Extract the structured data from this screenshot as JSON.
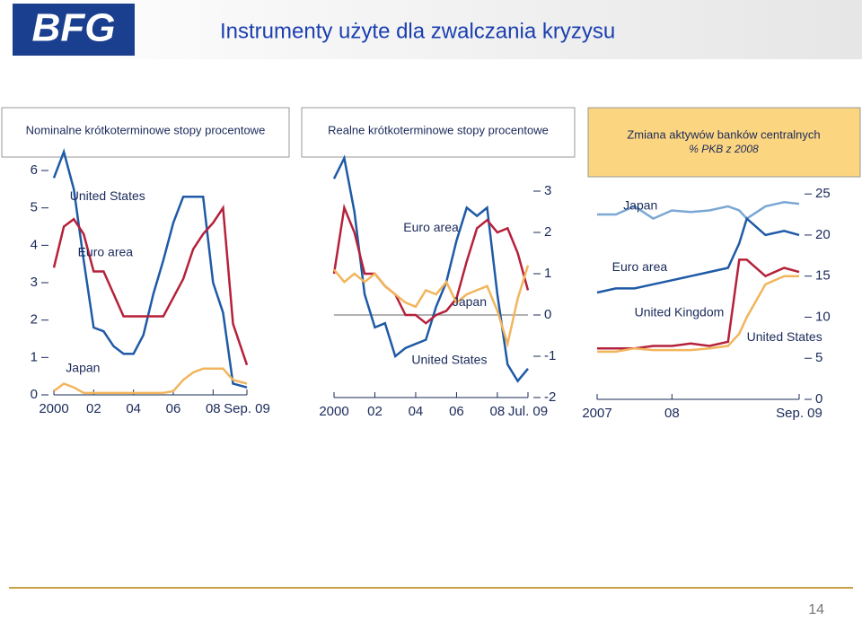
{
  "logo": "BFG",
  "title": "Instrumenty użyte dla zwalczania kryzysu",
  "page_number": "14",
  "chart_data": [
    {
      "type": "line",
      "title": "Nominalne krótkoterminowe stopy procentowe",
      "x": [
        2000,
        2000.5,
        2001,
        2001.5,
        2002,
        2002.5,
        2003,
        2003.5,
        2004,
        2004.5,
        2005,
        2005.5,
        2006,
        2006.5,
        2007,
        2007.5,
        2008,
        2008.5,
        2009,
        2009.7
      ],
      "series": [
        {
          "name": "United States",
          "color": "#1f5aa6",
          "values": [
            5.8,
            6.5,
            5.5,
            3.6,
            1.8,
            1.7,
            1.3,
            1.1,
            1.1,
            1.6,
            2.7,
            3.6,
            4.6,
            5.3,
            5.3,
            5.3,
            3.0,
            2.2,
            0.3,
            0.2
          ]
        },
        {
          "name": "Euro area",
          "color": "#b5213a",
          "values": [
            3.4,
            4.5,
            4.7,
            4.3,
            3.3,
            3.3,
            2.7,
            2.1,
            2.1,
            2.1,
            2.1,
            2.1,
            2.6,
            3.1,
            3.9,
            4.3,
            4.6,
            5.0,
            1.9,
            0.8
          ]
        },
        {
          "name": "Japan",
          "color": "#f2b55c",
          "values": [
            0.1,
            0.3,
            0.2,
            0.05,
            0.05,
            0.05,
            0.05,
            0.05,
            0.05,
            0.05,
            0.05,
            0.05,
            0.1,
            0.4,
            0.6,
            0.7,
            0.7,
            0.7,
            0.4,
            0.3
          ]
        }
      ],
      "xlim": [
        2000,
        2009.7
      ],
      "ylim": [
        0,
        6
      ],
      "xticks": [
        2000,
        {
          "value": 2002,
          "label": "02"
        },
        {
          "value": 2004,
          "label": "04"
        },
        {
          "value": 2006,
          "label": "06"
        },
        {
          "value": 2008,
          "label": "08"
        },
        {
          "value": 2009.7,
          "label": "Sep. 09"
        }
      ],
      "yticks": [
        0,
        1,
        2,
        3,
        4,
        5,
        6
      ]
    },
    {
      "type": "line",
      "title": "Realne krótkoterminowe stopy procentowe",
      "x": [
        2000,
        2000.5,
        2001,
        2001.5,
        2002,
        2002.5,
        2003,
        2003.5,
        2004,
        2004.5,
        2005,
        2005.5,
        2006,
        2006.5,
        2007,
        2007.5,
        2008,
        2008.5,
        2009,
        2009.5
      ],
      "series": [
        {
          "name": "United States",
          "color": "#1f5aa6",
          "values": [
            3.3,
            3.8,
            2.5,
            0.5,
            -0.3,
            -0.2,
            -1.0,
            -0.8,
            -0.7,
            -0.6,
            0.2,
            0.8,
            1.8,
            2.6,
            2.4,
            2.6,
            0.5,
            -1.2,
            -1.6,
            -1.3
          ]
        },
        {
          "name": "Euro area",
          "color": "#b5213a",
          "values": [
            1.0,
            2.6,
            2.0,
            1.0,
            1.0,
            0.7,
            0.5,
            0.0,
            0.0,
            -0.2,
            0.0,
            0.1,
            0.4,
            1.3,
            2.1,
            2.3,
            2.0,
            2.1,
            1.5,
            0.6
          ]
        },
        {
          "name": "Japan",
          "color": "#f2b55c",
          "values": [
            1.1,
            0.8,
            1.0,
            0.8,
            1.0,
            0.7,
            0.5,
            0.3,
            0.2,
            0.6,
            0.5,
            0.8,
            0.3,
            0.5,
            0.6,
            0.7,
            0.1,
            -0.7,
            0.4,
            1.2
          ]
        }
      ],
      "xlim": [
        2000,
        2009.5
      ],
      "ylim": [
        -2,
        3.5
      ],
      "xticks": [
        2000,
        {
          "value": 2002,
          "label": "02"
        },
        {
          "value": 2004,
          "label": "04"
        },
        {
          "value": 2006,
          "label": "06"
        },
        {
          "value": 2008,
          "label": "08"
        },
        {
          "value": 2009.5,
          "label": "Jul. 09"
        }
      ],
      "yticks": [
        -2,
        -1,
        0,
        1,
        2,
        3
      ],
      "zero_line": true
    },
    {
      "type": "line",
      "title": "Zmiana aktywów banków centralnych",
      "subtitle": "% PKB z 2008",
      "x": [
        2007,
        2007.25,
        2007.5,
        2007.75,
        2008,
        2008.25,
        2008.5,
        2008.75,
        2008.9,
        2009,
        2009.25,
        2009.5,
        2009.7
      ],
      "series": [
        {
          "name": "Japan",
          "color": "#7aa7d4",
          "values": [
            22.5,
            22.5,
            23.5,
            22,
            23,
            22.8,
            23,
            23.5,
            23,
            22,
            23.5,
            24,
            23.8
          ]
        },
        {
          "name": "Euro area",
          "color": "#1f5aa6",
          "values": [
            13,
            13.5,
            13.5,
            14,
            14.5,
            15,
            15.5,
            16,
            19,
            22,
            20,
            20.5,
            20
          ]
        },
        {
          "name": "United States",
          "color": "#b5213a",
          "values": [
            6.2,
            6.2,
            6.2,
            6.5,
            6.5,
            6.8,
            6.5,
            7,
            17,
            17,
            15,
            16,
            15.5
          ]
        },
        {
          "name": "United Kingdom",
          "color": "#f2b55c",
          "values": [
            5.8,
            5.8,
            6.2,
            6,
            6,
            6,
            6.2,
            6.5,
            8,
            10,
            14,
            15,
            15
          ]
        }
      ],
      "xlim": [
        2007,
        2009.7
      ],
      "ylim": [
        0,
        26
      ],
      "xticks": [
        2007,
        {
          "value": 2008,
          "label": "08"
        },
        {
          "value": 2009.7,
          "label": "Sep. 09"
        }
      ],
      "yticks": [
        0,
        5,
        10,
        15,
        20,
        25
      ]
    }
  ]
}
